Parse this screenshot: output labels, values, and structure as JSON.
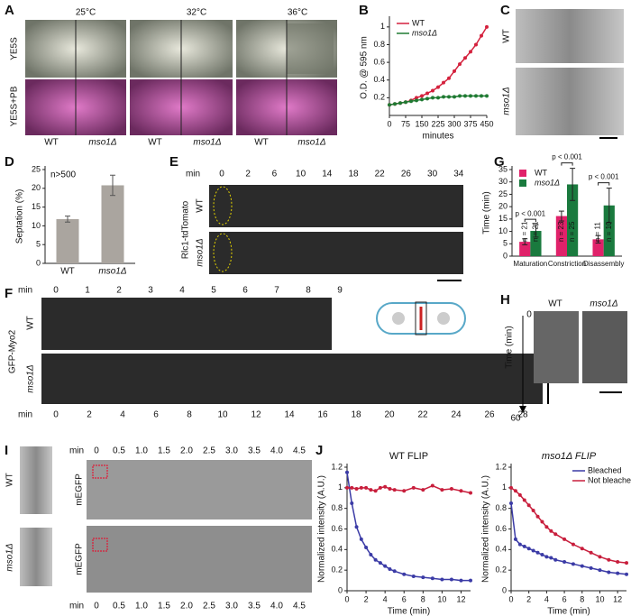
{
  "panels": {
    "A": {
      "letter": "A",
      "temps": [
        "25°C",
        "32°C",
        "36°C"
      ],
      "media": [
        "YE5S",
        "YE5S+PB"
      ],
      "strains": [
        "WT",
        "mso1Δ",
        "WT",
        "mso1Δ",
        "WT",
        "mso1Δ"
      ]
    },
    "B": {
      "letter": "B"
    },
    "C": {
      "letter": "C",
      "strains": [
        "WT",
        "mso1Δ"
      ]
    },
    "D": {
      "letter": "D"
    },
    "E": {
      "letter": "E",
      "min": "min",
      "times": [
        "0",
        "2",
        "6",
        "10",
        "14",
        "18",
        "22",
        "26",
        "30",
        "34"
      ],
      "strains": [
        "WT",
        "mso1Δ"
      ],
      "marker": "Rlc1-tdTomato"
    },
    "F": {
      "letter": "F",
      "min": "min",
      "times_top": [
        "0",
        "1",
        "2",
        "3",
        "4",
        "5",
        "6",
        "7",
        "8",
        "9"
      ],
      "times_bottom": [
        "0",
        "2",
        "4",
        "6",
        "8",
        "10",
        "12",
        "14",
        "16",
        "18",
        "20",
        "22",
        "24",
        "26",
        "28"
      ],
      "strains": [
        "WT",
        "mso1Δ"
      ],
      "marker": "GFP-Myo2"
    },
    "G": {
      "letter": "G"
    },
    "H": {
      "letter": "H",
      "strains": [
        "WT",
        "mso1Δ"
      ],
      "axis_label": "Time (min)",
      "start": "0",
      "end": "60"
    },
    "I": {
      "letter": "I",
      "min": "min",
      "times": [
        "0",
        "0.5",
        "1.0",
        "1.5",
        "2.0",
        "2.5",
        "3.0",
        "3.5",
        "4.0",
        "4.5"
      ],
      "strains": [
        "WT",
        "mso1Δ"
      ],
      "marker": "mEGFP"
    },
    "J": {
      "letter": "J"
    }
  },
  "chart_data": [
    {
      "type": "line",
      "xlabel": "minutes",
      "ylabel": "O.D. @ 595 nm",
      "x": [
        0,
        25,
        50,
        75,
        100,
        125,
        150,
        175,
        200,
        225,
        250,
        275,
        300,
        325,
        350,
        375,
        400,
        425,
        450
      ],
      "series": [
        {
          "name": "WT",
          "color": "#d4213d",
          "values": [
            0.12,
            0.13,
            0.14,
            0.15,
            0.17,
            0.2,
            0.22,
            0.25,
            0.28,
            0.32,
            0.37,
            0.42,
            0.5,
            0.58,
            0.65,
            0.72,
            0.8,
            0.9,
            1.0
          ]
        },
        {
          "name": "mso1Δ",
          "color": "#1f7a32",
          "values": [
            0.12,
            0.13,
            0.14,
            0.15,
            0.16,
            0.17,
            0.18,
            0.19,
            0.2,
            0.2,
            0.21,
            0.21,
            0.21,
            0.22,
            0.22,
            0.22,
            0.22,
            0.22,
            0.22
          ]
        }
      ],
      "xlim": [
        0,
        450
      ],
      "xticks": [
        0,
        75,
        150,
        225,
        300,
        375,
        450
      ],
      "ylim": [
        0,
        1.08
      ],
      "yticks": [
        0.2,
        0.4,
        0.6,
        0.8,
        1
      ],
      "legend": "upper left"
    },
    {
      "type": "bar",
      "ylabel": "Septation (%)",
      "annotation": "n>500",
      "categories": [
        "WT",
        "mso1Δ"
      ],
      "values": [
        11.8,
        20.8
      ],
      "errors": [
        0.8,
        2.7
      ],
      "color": "#aaa59f",
      "ylim": [
        0,
        25
      ],
      "yticks": [
        0,
        5,
        10,
        15,
        20,
        25
      ]
    },
    {
      "type": "bar",
      "ylabel": "Time (min)",
      "categories": [
        "Maturation",
        "Constriction",
        "Disassembly"
      ],
      "series": [
        {
          "name": "WT",
          "color": "#e0226a",
          "values": [
            5.8,
            16.2,
            6.8
          ],
          "errors": [
            1.2,
            2.0,
            1.5
          ],
          "n_labels": [
            "n = 21",
            "n = 23",
            "n = 11"
          ]
        },
        {
          "name": "mso1Δ",
          "color": "#1a7a3e",
          "values": [
            10.2,
            29,
            20.5
          ],
          "errors": [
            2.5,
            6.5,
            7
          ],
          "n_labels": [
            "n = 21",
            "n = 25",
            "n = 10"
          ]
        }
      ],
      "p_labels": [
        "p < 0.001",
        "p < 0.001",
        "p < 0.001"
      ],
      "ylim": [
        0,
        35
      ],
      "yticks": [
        0,
        5,
        10,
        15,
        20,
        25,
        30,
        35
      ],
      "legend": "upper left"
    },
    {
      "type": "line",
      "title": "WT FLIP",
      "xlabel": "Time (min)",
      "ylabel": "Normalized intensity (A.U.)",
      "x": [
        0,
        0.5,
        1,
        1.5,
        2,
        2.5,
        3,
        3.5,
        4,
        4.5,
        5,
        6,
        7,
        8,
        9,
        10,
        11,
        12,
        13
      ],
      "series": [
        {
          "color": "#3b3ba6",
          "values": [
            1.15,
            0.85,
            0.62,
            0.5,
            0.42,
            0.35,
            0.3,
            0.27,
            0.24,
            0.21,
            0.19,
            0.16,
            0.14,
            0.13,
            0.12,
            0.11,
            0.11,
            0.1,
            0.1
          ]
        },
        {
          "color": "#c81e3c",
          "values": [
            1.0,
            1.0,
            0.99,
            1.0,
            1.0,
            0.98,
            0.97,
            1.0,
            1.01,
            0.99,
            0.98,
            0.97,
            1.0,
            0.98,
            1.02,
            0.98,
            0.99,
            0.97,
            0.95
          ]
        }
      ],
      "xlim": [
        0,
        13
      ],
      "xticks": [
        0,
        2,
        4,
        6,
        8,
        10,
        12
      ],
      "ylim": [
        0,
        1.2
      ],
      "yticks": [
        0,
        0.2,
        0.4,
        0.6,
        0.8,
        1,
        1.2
      ]
    },
    {
      "type": "line",
      "title": "mso1Δ FLIP",
      "xlabel": "Time (min)",
      "ylabel": "Normalized intensity (A.U.)",
      "x": [
        0,
        0.5,
        1,
        1.5,
        2,
        2.5,
        3,
        3.5,
        4,
        4.5,
        5,
        6,
        7,
        8,
        9,
        10,
        11,
        12,
        13
      ],
      "series": [
        {
          "name": "Bleached",
          "color": "#3b3ba6",
          "values": [
            0.85,
            0.5,
            0.45,
            0.43,
            0.41,
            0.39,
            0.37,
            0.35,
            0.33,
            0.32,
            0.3,
            0.28,
            0.26,
            0.24,
            0.22,
            0.2,
            0.18,
            0.17,
            0.16
          ]
        },
        {
          "name": "Not bleached",
          "color": "#c81e3c",
          "values": [
            1.0,
            0.97,
            0.93,
            0.88,
            0.83,
            0.78,
            0.72,
            0.67,
            0.62,
            0.58,
            0.55,
            0.5,
            0.45,
            0.41,
            0.37,
            0.33,
            0.3,
            0.28,
            0.27
          ]
        }
      ],
      "xlim": [
        0,
        13
      ],
      "xticks": [
        0,
        2,
        4,
        6,
        8,
        10,
        12
      ],
      "ylim": [
        0,
        1.2
      ],
      "yticks": [
        0,
        0.2,
        0.4,
        0.6,
        0.8,
        1,
        1.2
      ],
      "legend": "upper right"
    }
  ]
}
